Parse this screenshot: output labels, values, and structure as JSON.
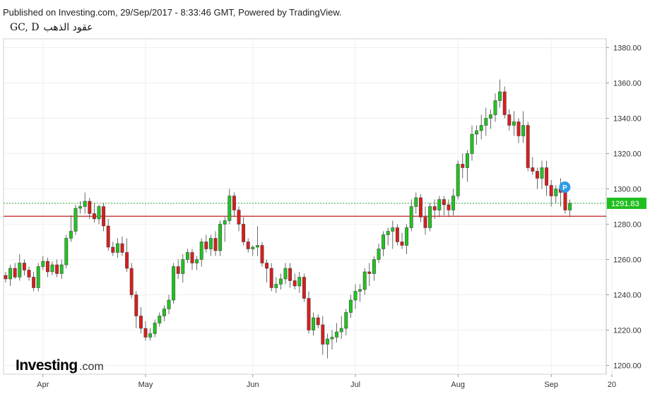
{
  "header": {
    "published": "Published on Investing.com, 29/Sep/2017 - 8:33:46 GMT, Powered by TradingView.",
    "symbol": "GC, D",
    "name": "عقود الذهب"
  },
  "branding": {
    "logo_text": "Investing",
    "logo_suffix": ".com"
  },
  "marker": {
    "label": "P"
  },
  "colors": {
    "up": "#22c322",
    "down": "#d61f1f",
    "price_line": "#2fa52f",
    "support_line": "#c21f1f",
    "price_badge": "#1fbf1f",
    "marker": "#2e9be8"
  },
  "chart_data": {
    "type": "candlestick",
    "title": "GC, D",
    "ylim": [
      1195,
      1385
    ],
    "y_ticks": [
      1380.0,
      1360.0,
      1340.0,
      1320.0,
      1300.0,
      1280.0,
      1260.0,
      1240.0,
      1220.0,
      1200.0
    ],
    "y_tick_labels": [
      "1380.00",
      "1360.00",
      "1340.00",
      "1320.00",
      "1300.00",
      "1280.00",
      "1260.00",
      "1240.00",
      "1220.00",
      "1200.00"
    ],
    "x_labels": [
      "Apr",
      "May",
      "Jun",
      "Jul",
      "Aug",
      "Sep",
      "20"
    ],
    "x_label_index": [
      8,
      30,
      53,
      75,
      97,
      117,
      130
    ],
    "last_price": 1291.83,
    "last_price_label": "1291.83",
    "horizontal_line": 1284.5,
    "grid": true,
    "candles": [
      [
        1251,
        1253,
        1247,
        1249
      ],
      [
        1249,
        1257,
        1245,
        1255
      ],
      [
        1255,
        1258,
        1249,
        1250
      ],
      [
        1250,
        1263,
        1248,
        1258
      ],
      [
        1258,
        1260,
        1251,
        1254
      ],
      [
        1254,
        1256,
        1248,
        1250
      ],
      [
        1250,
        1253,
        1242,
        1244
      ],
      [
        1244,
        1258,
        1242,
        1256
      ],
      [
        1256,
        1262,
        1254,
        1259
      ],
      [
        1259,
        1261,
        1250,
        1253
      ],
      [
        1253,
        1259,
        1251,
        1257
      ],
      [
        1257,
        1260,
        1250,
        1252
      ],
      [
        1252,
        1260,
        1249,
        1257
      ],
      [
        1257,
        1274,
        1255,
        1272
      ],
      [
        1272,
        1285,
        1270,
        1276
      ],
      [
        1276,
        1291,
        1274,
        1289
      ],
      [
        1289,
        1293,
        1286,
        1290
      ],
      [
        1290,
        1298,
        1286,
        1293
      ],
      [
        1293,
        1295,
        1283,
        1286
      ],
      [
        1286,
        1292,
        1281,
        1283
      ],
      [
        1283,
        1291,
        1280,
        1290
      ],
      [
        1290,
        1292,
        1276,
        1279
      ],
      [
        1279,
        1283,
        1265,
        1267
      ],
      [
        1267,
        1270,
        1262,
        1264
      ],
      [
        1264,
        1272,
        1261,
        1269
      ],
      [
        1269,
        1273,
        1262,
        1264
      ],
      [
        1264,
        1272,
        1253,
        1255
      ],
      [
        1255,
        1258,
        1238,
        1240
      ],
      [
        1240,
        1242,
        1221,
        1228
      ],
      [
        1228,
        1233,
        1218,
        1221
      ],
      [
        1221,
        1225,
        1214,
        1216
      ],
      [
        1216,
        1221,
        1214,
        1218
      ],
      [
        1218,
        1226,
        1216,
        1224
      ],
      [
        1224,
        1230,
        1222,
        1228
      ],
      [
        1228,
        1234,
        1225,
        1232
      ],
      [
        1232,
        1240,
        1229,
        1237
      ],
      [
        1237,
        1258,
        1235,
        1256
      ],
      [
        1256,
        1260,
        1249,
        1252
      ],
      [
        1252,
        1263,
        1247,
        1260
      ],
      [
        1260,
        1266,
        1258,
        1264
      ],
      [
        1264,
        1266,
        1254,
        1258
      ],
      [
        1258,
        1262,
        1254,
        1260
      ],
      [
        1260,
        1272,
        1256,
        1270
      ],
      [
        1270,
        1274,
        1264,
        1266
      ],
      [
        1266,
        1274,
        1262,
        1272
      ],
      [
        1272,
        1276,
        1262,
        1265
      ],
      [
        1265,
        1282,
        1262,
        1280
      ],
      [
        1280,
        1284,
        1270,
        1282
      ],
      [
        1282,
        1300,
        1280,
        1296
      ],
      [
        1296,
        1298,
        1284,
        1288
      ],
      [
        1288,
        1290,
        1276,
        1280
      ],
      [
        1280,
        1284,
        1268,
        1270
      ],
      [
        1270,
        1272,
        1264,
        1266
      ],
      [
        1266,
        1268,
        1262,
        1267
      ],
      [
        1267,
        1279,
        1262,
        1268
      ],
      [
        1268,
        1270,
        1256,
        1258
      ],
      [
        1258,
        1260,
        1247,
        1255
      ],
      [
        1255,
        1258,
        1242,
        1244
      ],
      [
        1244,
        1250,
        1241,
        1246
      ],
      [
        1246,
        1252,
        1243,
        1249
      ],
      [
        1249,
        1258,
        1246,
        1255
      ],
      [
        1255,
        1258,
        1244,
        1248
      ],
      [
        1248,
        1252,
        1243,
        1245
      ],
      [
        1245,
        1253,
        1241,
        1250
      ],
      [
        1250,
        1252,
        1236,
        1238
      ],
      [
        1238,
        1242,
        1218,
        1220
      ],
      [
        1220,
        1230,
        1217,
        1227
      ],
      [
        1227,
        1229,
        1221,
        1223
      ],
      [
        1223,
        1228,
        1206,
        1212
      ],
      [
        1212,
        1218,
        1204,
        1215
      ],
      [
        1215,
        1220,
        1209,
        1216
      ],
      [
        1216,
        1224,
        1213,
        1219
      ],
      [
        1219,
        1228,
        1215,
        1221
      ],
      [
        1221,
        1232,
        1217,
        1230
      ],
      [
        1230,
        1240,
        1227,
        1237
      ],
      [
        1237,
        1246,
        1232,
        1242
      ],
      [
        1242,
        1246,
        1236,
        1243
      ],
      [
        1243,
        1255,
        1240,
        1253
      ],
      [
        1253,
        1258,
        1245,
        1252
      ],
      [
        1252,
        1262,
        1248,
        1260
      ],
      [
        1260,
        1269,
        1258,
        1266
      ],
      [
        1266,
        1276,
        1262,
        1274
      ],
      [
        1274,
        1278,
        1268,
        1276
      ],
      [
        1276,
        1282,
        1266,
        1278
      ],
      [
        1278,
        1280,
        1268,
        1270
      ],
      [
        1270,
        1275,
        1266,
        1268
      ],
      [
        1268,
        1280,
        1263,
        1278
      ],
      [
        1278,
        1294,
        1276,
        1290
      ],
      [
        1290,
        1298,
        1286,
        1295
      ],
      [
        1295,
        1297,
        1281,
        1284
      ],
      [
        1284,
        1290,
        1274,
        1278
      ],
      [
        1278,
        1292,
        1276,
        1290
      ],
      [
        1290,
        1294,
        1283,
        1288
      ],
      [
        1288,
        1296,
        1284,
        1294
      ],
      [
        1294,
        1296,
        1285,
        1291
      ],
      [
        1291,
        1294,
        1284,
        1288
      ],
      [
        1288,
        1300,
        1285,
        1296
      ],
      [
        1296,
        1316,
        1294,
        1314
      ],
      [
        1314,
        1320,
        1306,
        1312
      ],
      [
        1312,
        1322,
        1304,
        1320
      ],
      [
        1320,
        1336,
        1316,
        1331
      ],
      [
        1331,
        1336,
        1325,
        1333
      ],
      [
        1333,
        1342,
        1328,
        1336
      ],
      [
        1336,
        1346,
        1330,
        1340
      ],
      [
        1340,
        1345,
        1334,
        1342
      ],
      [
        1342,
        1354,
        1338,
        1350
      ],
      [
        1350,
        1362,
        1346,
        1355
      ],
      [
        1355,
        1358,
        1340,
        1342
      ],
      [
        1342,
        1345,
        1333,
        1336
      ],
      [
        1336,
        1344,
        1330,
        1338
      ],
      [
        1338,
        1340,
        1326,
        1330
      ],
      [
        1330,
        1344,
        1326,
        1336
      ],
      [
        1336,
        1338,
        1310,
        1312
      ],
      [
        1312,
        1318,
        1308,
        1310
      ],
      [
        1310,
        1312,
        1300,
        1306
      ],
      [
        1306,
        1316,
        1300,
        1312
      ],
      [
        1312,
        1316,
        1296,
        1302
      ],
      [
        1302,
        1305,
        1290,
        1296
      ],
      [
        1296,
        1302,
        1292,
        1300
      ],
      [
        1300,
        1306,
        1290,
        1298
      ],
      [
        1298,
        1300,
        1286,
        1288
      ],
      [
        1288,
        1294,
        1284,
        1291.83
      ]
    ]
  }
}
